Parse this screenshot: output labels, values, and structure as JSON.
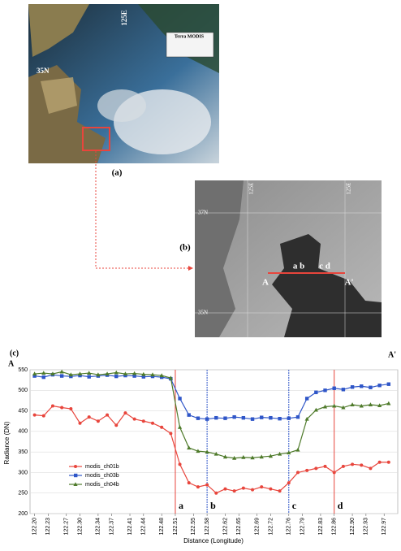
{
  "panel_a": {
    "label": "(a)",
    "lon_label": "125E",
    "lat_label": "35N",
    "info_title": "Terra MODIS"
  },
  "panel_b": {
    "label": "(b)",
    "lon_label_1": "125E",
    "lon_label_2": "125E",
    "lat_label_1": "37N",
    "lat_label_2": "35N",
    "point_start": "A",
    "point_end": "A'",
    "points_ab": "a b",
    "points_cd": "c d"
  },
  "chart_data": {
    "type": "line",
    "panel_label": "(c)",
    "start_label": "A",
    "end_label": "A'",
    "x_label": "Distance (Longitude)",
    "y_label": "Radiance (DN)",
    "xlim": [
      122.19,
      123.0
    ],
    "ylim": [
      200,
      550
    ],
    "xticks": [
      {
        "value": 122.2,
        "label": "122.20"
      },
      {
        "value": 122.23,
        "label": "122.23"
      },
      {
        "value": 122.27,
        "label": "122.27"
      },
      {
        "value": 122.3,
        "label": "122.30"
      },
      {
        "value": 122.34,
        "label": "122.34"
      },
      {
        "value": 122.37,
        "label": "122.37"
      },
      {
        "value": 122.41,
        "label": "122.41"
      },
      {
        "value": 122.44,
        "label": "122.44"
      },
      {
        "value": 122.48,
        "label": "122.48"
      },
      {
        "value": 122.51,
        "label": "122.51"
      },
      {
        "value": 122.55,
        "label": "122.55"
      },
      {
        "value": 122.58,
        "label": "122.58"
      },
      {
        "value": 122.62,
        "label": "122.62"
      },
      {
        "value": 122.65,
        "label": "122.65"
      },
      {
        "value": 122.69,
        "label": "122.69"
      },
      {
        "value": 122.72,
        "label": "122.72"
      },
      {
        "value": 122.76,
        "label": "122.76"
      },
      {
        "value": 122.79,
        "label": "122.79"
      },
      {
        "value": 122.83,
        "label": "122.83"
      },
      {
        "value": 122.86,
        "label": "122.86"
      },
      {
        "value": 122.9,
        "label": "122.90"
      },
      {
        "value": 122.93,
        "label": "122.93"
      },
      {
        "value": 122.97,
        "label": "122.97"
      }
    ],
    "yticks": [
      200,
      250,
      300,
      350,
      400,
      450,
      500,
      550
    ],
    "x": [
      122.2,
      122.22,
      122.24,
      122.26,
      122.28,
      122.3,
      122.32,
      122.34,
      122.36,
      122.38,
      122.4,
      122.42,
      122.44,
      122.46,
      122.48,
      122.5,
      122.52,
      122.54,
      122.56,
      122.58,
      122.6,
      122.62,
      122.64,
      122.66,
      122.68,
      122.7,
      122.72,
      122.74,
      122.76,
      122.78,
      122.8,
      122.82,
      122.84,
      122.86,
      122.88,
      122.9,
      122.92,
      122.94,
      122.96,
      122.98
    ],
    "series": [
      {
        "name": "modis_ch01b",
        "color": "#e8453c",
        "marker": "circle",
        "values": [
          440,
          438,
          462,
          458,
          455,
          420,
          435,
          425,
          440,
          415,
          445,
          430,
          425,
          420,
          410,
          395,
          320,
          275,
          265,
          270,
          250,
          260,
          255,
          262,
          258,
          265,
          260,
          255,
          275,
          300,
          305,
          310,
          315,
          300,
          315,
          320,
          318,
          310,
          325,
          325
        ]
      },
      {
        "name": "modis_ch03b",
        "color": "#2f56c8",
        "marker": "square",
        "values": [
          535,
          532,
          538,
          535,
          534,
          536,
          533,
          535,
          537,
          534,
          536,
          535,
          533,
          534,
          532,
          528,
          480,
          440,
          432,
          430,
          433,
          432,
          435,
          433,
          430,
          434,
          433,
          431,
          432,
          435,
          480,
          495,
          500,
          505,
          502,
          508,
          510,
          507,
          512,
          515
        ]
      },
      {
        "name": "modis_ch04b",
        "color": "#4e7a2a",
        "marker": "triangle",
        "values": [
          540,
          542,
          540,
          545,
          538,
          540,
          542,
          538,
          540,
          543,
          540,
          541,
          539,
          538,
          536,
          530,
          410,
          360,
          352,
          350,
          345,
          338,
          335,
          337,
          336,
          338,
          340,
          345,
          348,
          355,
          430,
          452,
          460,
          462,
          458,
          465,
          462,
          465,
          463,
          468
        ]
      }
    ],
    "markers": [
      {
        "x": 122.51,
        "label": "a",
        "color": "#e8453c"
      },
      {
        "x": 122.58,
        "label": "b",
        "color": "#2f56c8"
      },
      {
        "x": 122.76,
        "label": "c",
        "color": "#2f56c8"
      },
      {
        "x": 122.86,
        "label": "d",
        "color": "#e8453c"
      }
    ],
    "legend": "lower-left"
  }
}
